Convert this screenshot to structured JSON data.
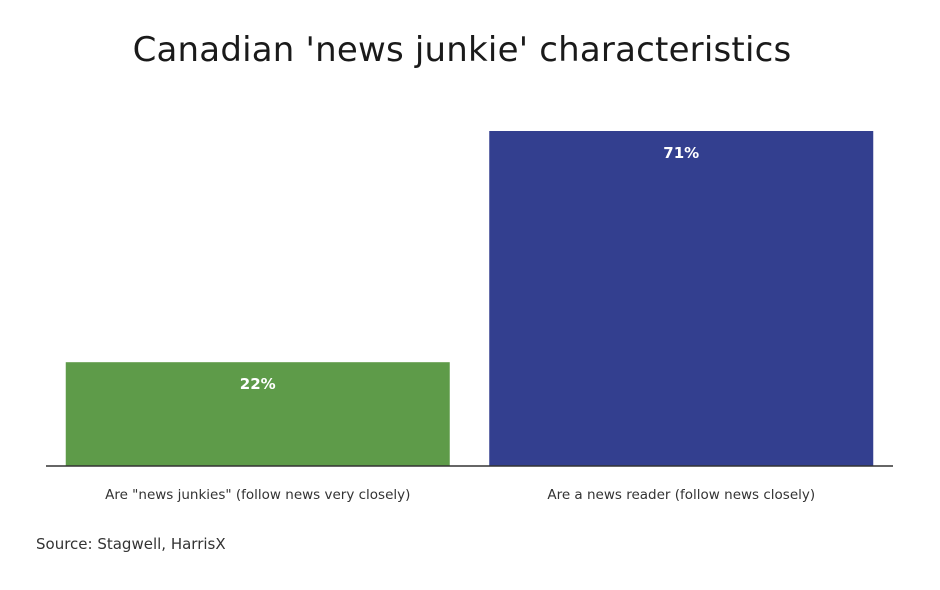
{
  "chart_data": {
    "type": "bar",
    "title": "Canadian 'news junkie' characteristics",
    "categories": [
      "Are \"news junkies\" (follow news very closely)",
      "Are a news reader (follow news closely)"
    ],
    "values": [
      22,
      71
    ],
    "value_labels": [
      "22%",
      "71%"
    ],
    "colors": [
      "#5e9b49",
      "#333f8f"
    ],
    "ylim": [
      0,
      71
    ],
    "xlabel": "",
    "ylabel": "",
    "grid": false,
    "legend": "none",
    "source": "Source: Stagwell, HarrisX"
  }
}
